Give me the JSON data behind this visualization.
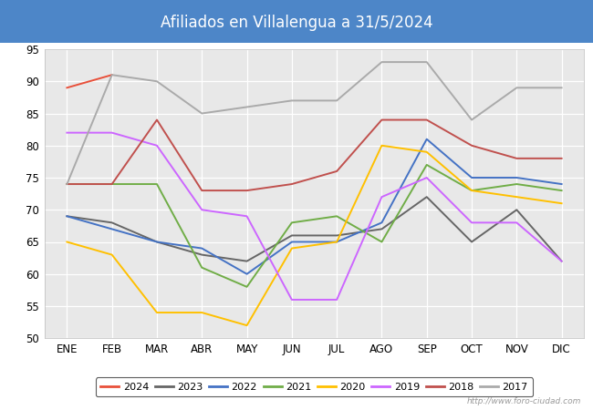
{
  "title": "Afiliados en Villalengua a 31/5/2024",
  "title_bg_color": "#4d86c8",
  "title_text_color": "white",
  "ylim": [
    50,
    95
  ],
  "yticks": [
    50,
    55,
    60,
    65,
    70,
    75,
    80,
    85,
    90,
    95
  ],
  "months": [
    "ENE",
    "FEB",
    "MAR",
    "ABR",
    "MAY",
    "JUN",
    "JUL",
    "AGO",
    "SEP",
    "OCT",
    "NOV",
    "DIC"
  ],
  "watermark": "http://www.foro-ciudad.com",
  "series": {
    "2024": {
      "color": "#e8503a",
      "values": [
        89,
        91,
        null,
        null,
        null,
        null,
        null,
        null,
        null,
        null,
        null,
        null
      ]
    },
    "2023": {
      "color": "#666666",
      "values": [
        69,
        68,
        65,
        63,
        62,
        66,
        66,
        67,
        72,
        65,
        70,
        62
      ]
    },
    "2022": {
      "color": "#4472c4",
      "values": [
        69,
        67,
        65,
        64,
        60,
        65,
        65,
        68,
        81,
        75,
        75,
        74
      ]
    },
    "2021": {
      "color": "#70ad47",
      "values": [
        74,
        74,
        74,
        61,
        58,
        68,
        69,
        65,
        77,
        73,
        74,
        73
      ]
    },
    "2020": {
      "color": "#ffc000",
      "values": [
        65,
        63,
        54,
        54,
        52,
        64,
        65,
        80,
        79,
        73,
        72,
        71
      ]
    },
    "2019": {
      "color": "#cc66ff",
      "values": [
        82,
        82,
        80,
        70,
        69,
        56,
        56,
        72,
        75,
        68,
        68,
        62
      ]
    },
    "2018": {
      "color": "#c0504d",
      "values": [
        74,
        74,
        84,
        73,
        73,
        74,
        76,
        84,
        84,
        80,
        78,
        78
      ]
    },
    "2017": {
      "color": "#aaaaaa",
      "values": [
        74,
        91,
        90,
        85,
        86,
        87,
        87,
        93,
        93,
        84,
        89,
        89
      ]
    }
  }
}
